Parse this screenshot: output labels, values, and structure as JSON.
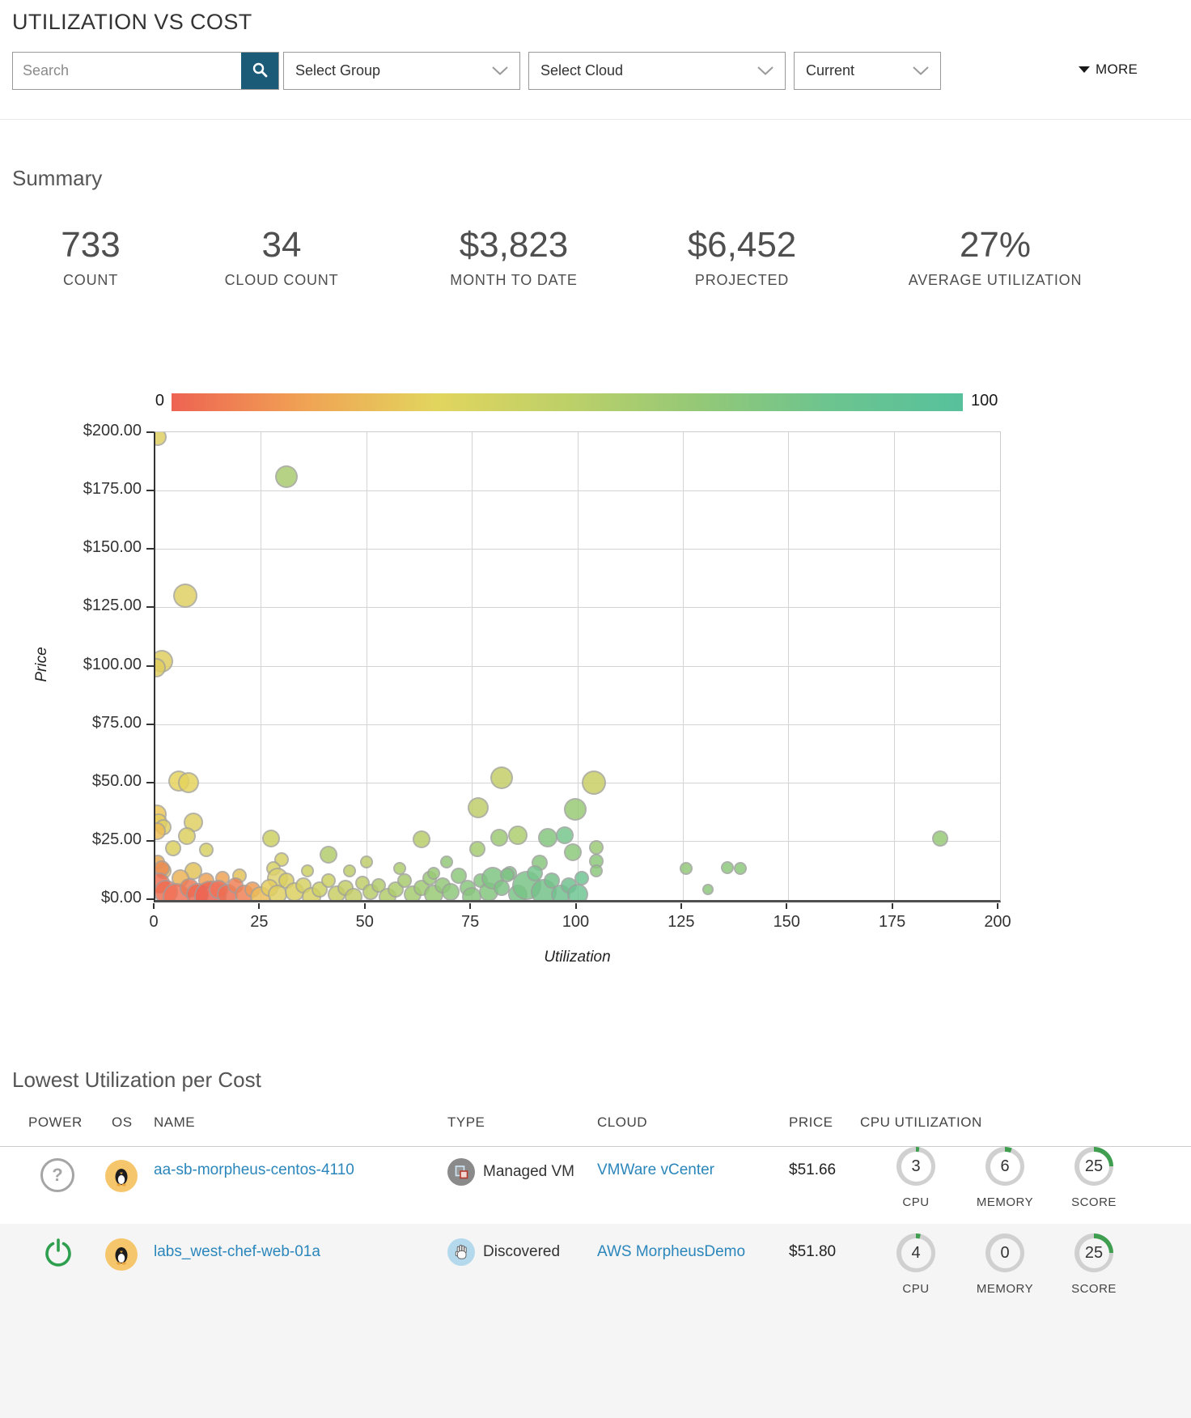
{
  "header": {
    "title": "UTILIZATION VS COST",
    "search_placeholder": "Search",
    "group_dropdown": "Select Group",
    "cloud_dropdown": "Select Cloud",
    "period_dropdown": "Current",
    "more_label": "MORE"
  },
  "summary": {
    "heading": "Summary",
    "stats": [
      {
        "value": "733",
        "label": "COUNT"
      },
      {
        "value": "34",
        "label": "CLOUD COUNT"
      },
      {
        "value": "$3,823",
        "label": "MONTH TO DATE"
      },
      {
        "value": "$6,452",
        "label": "PROJECTED"
      },
      {
        "value": "27%",
        "label": "AVERAGE UTILIZATION"
      }
    ]
  },
  "chart_data": {
    "type": "scatter",
    "xlabel": "Utilization",
    "ylabel": "Price",
    "xlim": [
      0,
      200
    ],
    "ylim": [
      0,
      200
    ],
    "x_ticks": [
      0,
      25,
      50,
      75,
      100,
      125,
      150,
      175,
      200
    ],
    "y_ticks": [
      0,
      25,
      50,
      75,
      100,
      125,
      150,
      175,
      200
    ],
    "y_tick_labels": [
      "$0.00",
      "$25.00",
      "$50.00",
      "$75.00",
      "$100.00",
      "$125.00",
      "$150.00",
      "$175.00",
      "$200.00"
    ],
    "grid": true,
    "legend": {
      "type": "gradient",
      "min": 0,
      "max": 100,
      "colors": [
        "#ee6352",
        "#f0a254",
        "#e2d55e",
        "#bdd068",
        "#94c877",
        "#6cc48f",
        "#57c19c"
      ]
    },
    "points": [
      [
        0.5,
        198,
        11,
        "#e0cf62"
      ],
      [
        31,
        181,
        14,
        "#a9cb6e"
      ],
      [
        7,
        130,
        15,
        "#e0cf62"
      ],
      [
        1.5,
        102,
        14,
        "#e0cd5f"
      ],
      [
        0.2,
        99,
        12,
        "#e0cd5f"
      ],
      [
        5.5,
        50.5,
        13,
        "#e6d35c"
      ],
      [
        7.8,
        50,
        13,
        "#e6d35c"
      ],
      [
        82,
        52,
        14,
        "#c4cd66"
      ],
      [
        104,
        50,
        15,
        "#c9cd62"
      ],
      [
        76.5,
        39,
        13,
        "#bfcd68"
      ],
      [
        99.5,
        38.5,
        14,
        "#98ca74"
      ],
      [
        0.3,
        36.5,
        12,
        "#ecc658"
      ],
      [
        0.8,
        33,
        11,
        "#e6cd5c"
      ],
      [
        9,
        33,
        12,
        "#e0cf62"
      ],
      [
        2,
        31,
        10,
        "#e0cf62"
      ],
      [
        0.4,
        29,
        11,
        "#edbc56"
      ],
      [
        7.5,
        27,
        11,
        "#dcd060"
      ],
      [
        27.5,
        26,
        11,
        "#cdd062"
      ],
      [
        63,
        25.5,
        11,
        "#b8ce6a"
      ],
      [
        4.2,
        22,
        10,
        "#dcd060"
      ],
      [
        12,
        21,
        9,
        "#d7d162"
      ],
      [
        81.5,
        26.5,
        11,
        "#9cca72"
      ],
      [
        86,
        27.3,
        12,
        "#aecd6c"
      ],
      [
        93,
        26.5,
        12,
        "#84c57e"
      ],
      [
        97,
        27.3,
        11,
        "#76c78c"
      ],
      [
        186,
        26,
        10,
        "#96ca76"
      ],
      [
        76.4,
        21.6,
        10,
        "#a5cc70"
      ],
      [
        99,
        20,
        11,
        "#8cc87c"
      ],
      [
        104.6,
        22.3,
        9,
        "#9cca74"
      ],
      [
        41,
        19,
        11,
        "#b2cc6c"
      ],
      [
        30,
        17,
        9,
        "#d7d162"
      ],
      [
        50,
        16,
        8,
        "#bfcd68"
      ],
      [
        69,
        16,
        8,
        "#92c878"
      ],
      [
        91,
        15.5,
        10,
        "#88c67e"
      ],
      [
        104.6,
        16.4,
        9,
        "#8cc87c"
      ],
      [
        125.8,
        13,
        8,
        "#92c878"
      ],
      [
        135.5,
        13.6,
        8,
        "#8cc87c"
      ],
      [
        138.6,
        13,
        8,
        "#8cc87c"
      ],
      [
        131,
        4,
        7,
        "#8cc87c"
      ],
      [
        104.6,
        12,
        8,
        "#8cc87c"
      ],
      [
        58,
        13,
        8,
        "#aecd6c"
      ],
      [
        28,
        13,
        9,
        "#d7d162"
      ],
      [
        36,
        12,
        8,
        "#ced063"
      ],
      [
        46,
        12,
        8,
        "#bfcd68"
      ],
      [
        9,
        12,
        11,
        "#e4c35a"
      ],
      [
        2,
        12,
        10,
        "#edb858"
      ],
      [
        20,
        10,
        9,
        "#e4c35a"
      ],
      [
        16,
        9,
        9,
        "#f0a254"
      ],
      [
        6,
        9,
        11,
        "#edb356"
      ],
      [
        12,
        8,
        10,
        "#f0a254"
      ],
      [
        29,
        9,
        13,
        "#ddd16e"
      ],
      [
        0.5,
        16,
        9,
        "#e8a953"
      ],
      [
        1.5,
        13,
        10,
        "#eb8b52"
      ],
      [
        1,
        7,
        13,
        "#ee6e52"
      ],
      [
        2.5,
        3,
        15,
        "#ee6e52"
      ],
      [
        5,
        1,
        17,
        "#f07358"
      ],
      [
        8,
        5,
        12,
        "#ee7a55"
      ],
      [
        10,
        2,
        14,
        "#ee6a50"
      ],
      [
        13,
        1,
        20,
        "#ed6350"
      ],
      [
        15,
        4,
        12,
        "#f07358"
      ],
      [
        17,
        2,
        13,
        "#ee6e52"
      ],
      [
        19,
        6,
        10,
        "#f08055"
      ],
      [
        21,
        2,
        12,
        "#f08055"
      ],
      [
        23,
        4,
        10,
        "#f09a54"
      ],
      [
        25,
        1,
        13,
        "#edbc56"
      ],
      [
        27,
        5,
        11,
        "#e6cd5c"
      ],
      [
        29,
        2,
        12,
        "#e0cf62"
      ],
      [
        31,
        8,
        10,
        "#dcd060"
      ],
      [
        33,
        3,
        12,
        "#dcd060"
      ],
      [
        35,
        6,
        10,
        "#d7d162"
      ],
      [
        37,
        1,
        12,
        "#d7d162"
      ],
      [
        39,
        4,
        10,
        "#ced063"
      ],
      [
        41,
        8,
        9,
        "#ced063"
      ],
      [
        43,
        2,
        11,
        "#c9cd62"
      ],
      [
        45,
        5,
        10,
        "#c4cd66"
      ],
      [
        47,
        1,
        11,
        "#c4cd66"
      ],
      [
        49,
        7,
        9,
        "#bfcd68"
      ],
      [
        51,
        3,
        10,
        "#b8ce6a"
      ],
      [
        53,
        6,
        9,
        "#b2cc6c"
      ],
      [
        55,
        1,
        11,
        "#b2cc6c"
      ],
      [
        57,
        4,
        10,
        "#aecd6c"
      ],
      [
        59,
        8,
        9,
        "#a9cb6e"
      ],
      [
        61,
        2,
        11,
        "#a5cc70"
      ],
      [
        63,
        5,
        10,
        "#9fcb72"
      ],
      [
        65,
        9,
        9,
        "#9cca74"
      ],
      [
        66,
        2,
        12,
        "#98ca74"
      ],
      [
        68,
        6,
        10,
        "#92c878"
      ],
      [
        70,
        3,
        11,
        "#8fc87a"
      ],
      [
        72,
        10,
        10,
        "#8cc87c"
      ],
      [
        74,
        5,
        10,
        "#88c67e"
      ],
      [
        75,
        1,
        12,
        "#88c67e"
      ],
      [
        77,
        8,
        9,
        "#84c57e"
      ],
      [
        79,
        3,
        12,
        "#84c57e"
      ],
      [
        80,
        9,
        14,
        "#7fc482"
      ],
      [
        82,
        5,
        10,
        "#7dc384"
      ],
      [
        84,
        11,
        9,
        "#7dc384"
      ],
      [
        86,
        2,
        12,
        "#79c486"
      ],
      [
        88,
        6,
        18,
        "#79c486"
      ],
      [
        90,
        11,
        10,
        "#76c78c"
      ],
      [
        92,
        3,
        16,
        "#74c28a"
      ],
      [
        94,
        8,
        10,
        "#74c28a"
      ],
      [
        96,
        2,
        12,
        "#70c18e"
      ],
      [
        98,
        6,
        10,
        "#70c18e"
      ],
      [
        100,
        2,
        13,
        "#6ec492"
      ],
      [
        101,
        9,
        9,
        "#6ec492"
      ],
      [
        66,
        11,
        8,
        "#98ca74"
      ],
      [
        83.5,
        10.5,
        9,
        "#7dc384"
      ]
    ]
  },
  "table": {
    "heading": "Lowest Utilization per Cost",
    "columns": [
      "POWER",
      "OS",
      "NAME",
      "TYPE",
      "CLOUD",
      "PRICE",
      "CPU UTILIZATION"
    ],
    "gauge_labels": [
      "CPU",
      "MEMORY",
      "SCORE"
    ],
    "rows": [
      {
        "power": "unknown",
        "power_symbol": "?",
        "os": "linux",
        "name": "aa-sb-morpheus-centos-4110",
        "type": "Managed VM",
        "cloud": "VMWare vCenter",
        "price": "$51.66",
        "gauges": {
          "cpu": 3,
          "memory": 6,
          "score": 25
        }
      },
      {
        "power": "on",
        "power_symbol": "",
        "os": "linux",
        "name": "labs_west-chef-web-01a",
        "type": "Discovered",
        "cloud": "AWS MorpheusDemo",
        "price": "$51.80",
        "gauges": {
          "cpu": 4,
          "memory": 0,
          "score": 25
        }
      }
    ]
  },
  "colors": {
    "accent_teal": "#1b5b78",
    "link_blue": "#2a86bb",
    "gauge_green": "#3f9e4f",
    "gauge_track": "#d0d0d0",
    "row_alt_bg": "#f5f5f5"
  }
}
